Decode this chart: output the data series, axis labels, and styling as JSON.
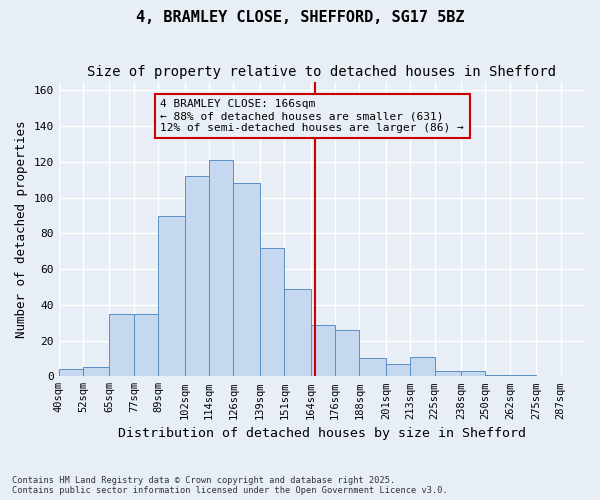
{
  "title": "4, BRAMLEY CLOSE, SHEFFORD, SG17 5BZ",
  "subtitle": "Size of property relative to detached houses in Shefford",
  "xlabel": "Distribution of detached houses by size in Shefford",
  "ylabel": "Number of detached properties",
  "footnote1": "Contains HM Land Registry data © Crown copyright and database right 2025.",
  "footnote2": "Contains public sector information licensed under the Open Government Licence v3.0.",
  "bin_labels": [
    "40sqm",
    "52sqm",
    "65sqm",
    "77sqm",
    "89sqm",
    "102sqm",
    "114sqm",
    "126sqm",
    "139sqm",
    "151sqm",
    "164sqm",
    "176sqm",
    "188sqm",
    "201sqm",
    "213sqm",
    "225sqm",
    "238sqm",
    "250sqm",
    "262sqm",
    "275sqm",
    "287sqm"
  ],
  "bar_values": [
    4,
    5,
    35,
    35,
    90,
    112,
    121,
    108,
    72,
    49,
    29,
    26,
    10,
    7,
    11,
    3,
    3,
    1,
    1,
    0,
    0
  ],
  "bin_edges": [
    40,
    52,
    65,
    77,
    89,
    102,
    114,
    126,
    139,
    151,
    164,
    176,
    188,
    201,
    213,
    225,
    238,
    250,
    262,
    275,
    287,
    299
  ],
  "bar_color": "#c5d8ef",
  "bar_edge_color": "#5a8fc5",
  "property_size": 166,
  "vline_color": "#cc0000",
  "annotation_text": "4 BRAMLEY CLOSE: 166sqm\n← 88% of detached houses are smaller (631)\n12% of semi-detached houses are larger (86) →",
  "ylim": [
    0,
    165
  ],
  "bg_color": "#e8eef5",
  "grid_color": "#ffffff",
  "title_fontsize": 11,
  "subtitle_fontsize": 10,
  "axis_fontsize": 9,
  "tick_fontsize": 7.5,
  "annotation_fontsize": 8
}
